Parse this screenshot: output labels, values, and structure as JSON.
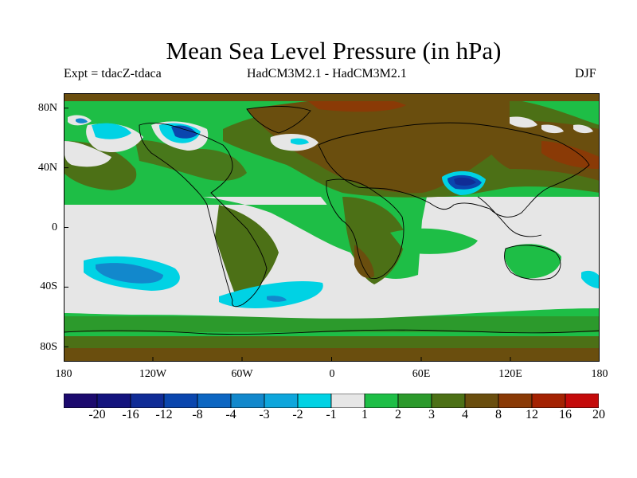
{
  "title": "Mean Sea Level Pressure (in hPa)",
  "subtitle_left": "Expt = tdacZ-tdaca",
  "subtitle_center": "HadCM3M2.1 - HadCM3M2.1",
  "subtitle_right": "DJF",
  "lat_labels": [
    "80N",
    "40N",
    "0",
    "40S",
    "80S"
  ],
  "lon_labels": [
    "180",
    "120W",
    "60W",
    "0",
    "60E",
    "120E",
    "180"
  ],
  "colorbar": {
    "levels": [
      "-20",
      "-16",
      "-12",
      "-8",
      "-4",
      "-3",
      "-2",
      "-1",
      "1",
      "2",
      "3",
      "4",
      "8",
      "12",
      "16",
      "20"
    ],
    "colors": [
      "#1c0a6e",
      "#14147e",
      "#102c96",
      "#0a46ae",
      "#0c66c2",
      "#1288cc",
      "#0ea6dc",
      "#00d2e4",
      "#e6e6e6",
      "#1ebe46",
      "#2c9a2c",
      "#4c7016",
      "#6a4e0e",
      "#8a3a06",
      "#a42202",
      "#c40a0a"
    ]
  },
  "map": {
    "projection": "cylindrical-equidistant",
    "lon_range": [
      -180,
      180
    ],
    "lat_range": [
      -90,
      90
    ],
    "field": "MSLP difference"
  }
}
